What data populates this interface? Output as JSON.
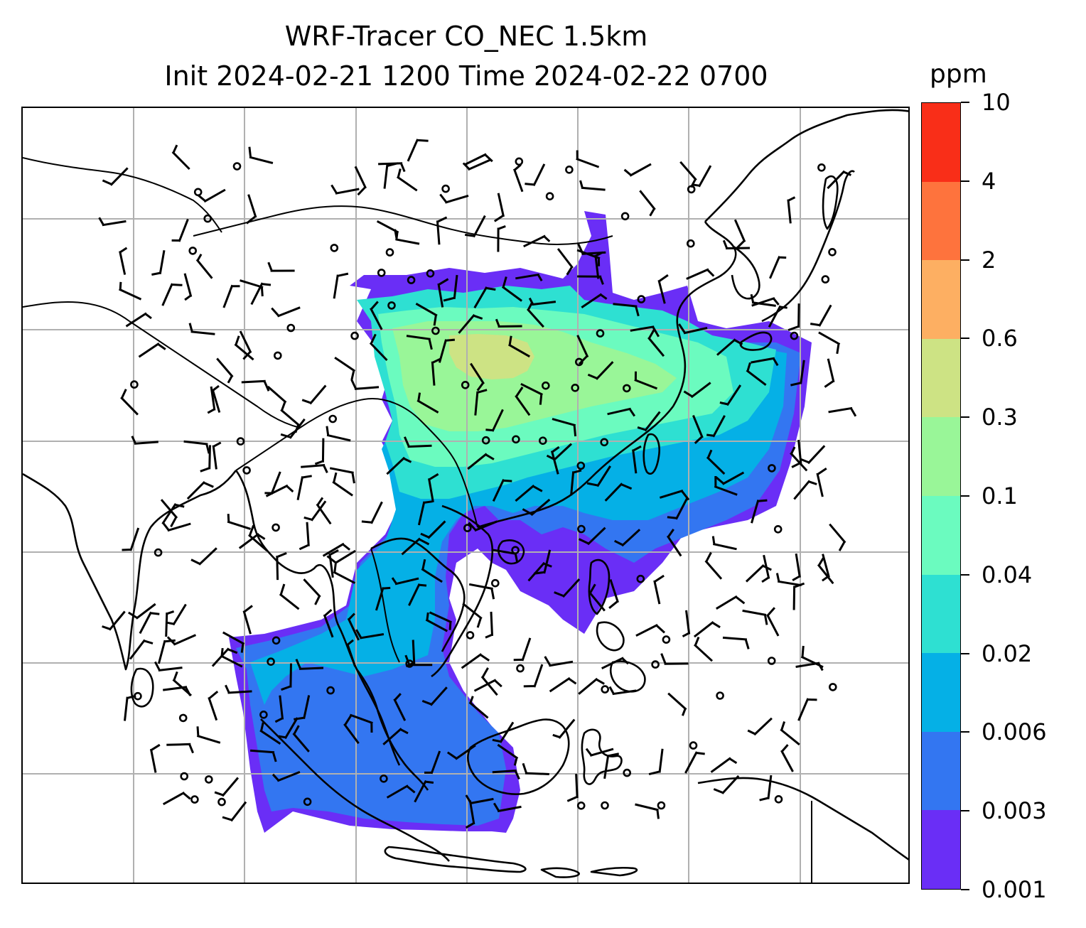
{
  "title": {
    "line1": "WRF-Tracer CO_NEC 1.5km",
    "line2": "Init 2024-02-21 1200 Time 2024-02-22 0700"
  },
  "colorbar": {
    "unit": "ppm",
    "levels": [
      "0.001",
      "0.003",
      "0.006",
      "0.02",
      "0.04",
      "0.1",
      "0.3",
      "0.6",
      "2",
      "4",
      "10"
    ],
    "colors": [
      "#6a2ef6",
      "#3376f1",
      "#05b0e6",
      "#2ee0d2",
      "#6bfbbf",
      "#99f698",
      "#cde384",
      "#fdaf62",
      "#fe733d",
      "#f92e18"
    ]
  },
  "map": {
    "gridlines": true,
    "coastline_color": "#000000",
    "grid_color": "#b0b0b0",
    "wind_barb_color": "#000000"
  }
}
